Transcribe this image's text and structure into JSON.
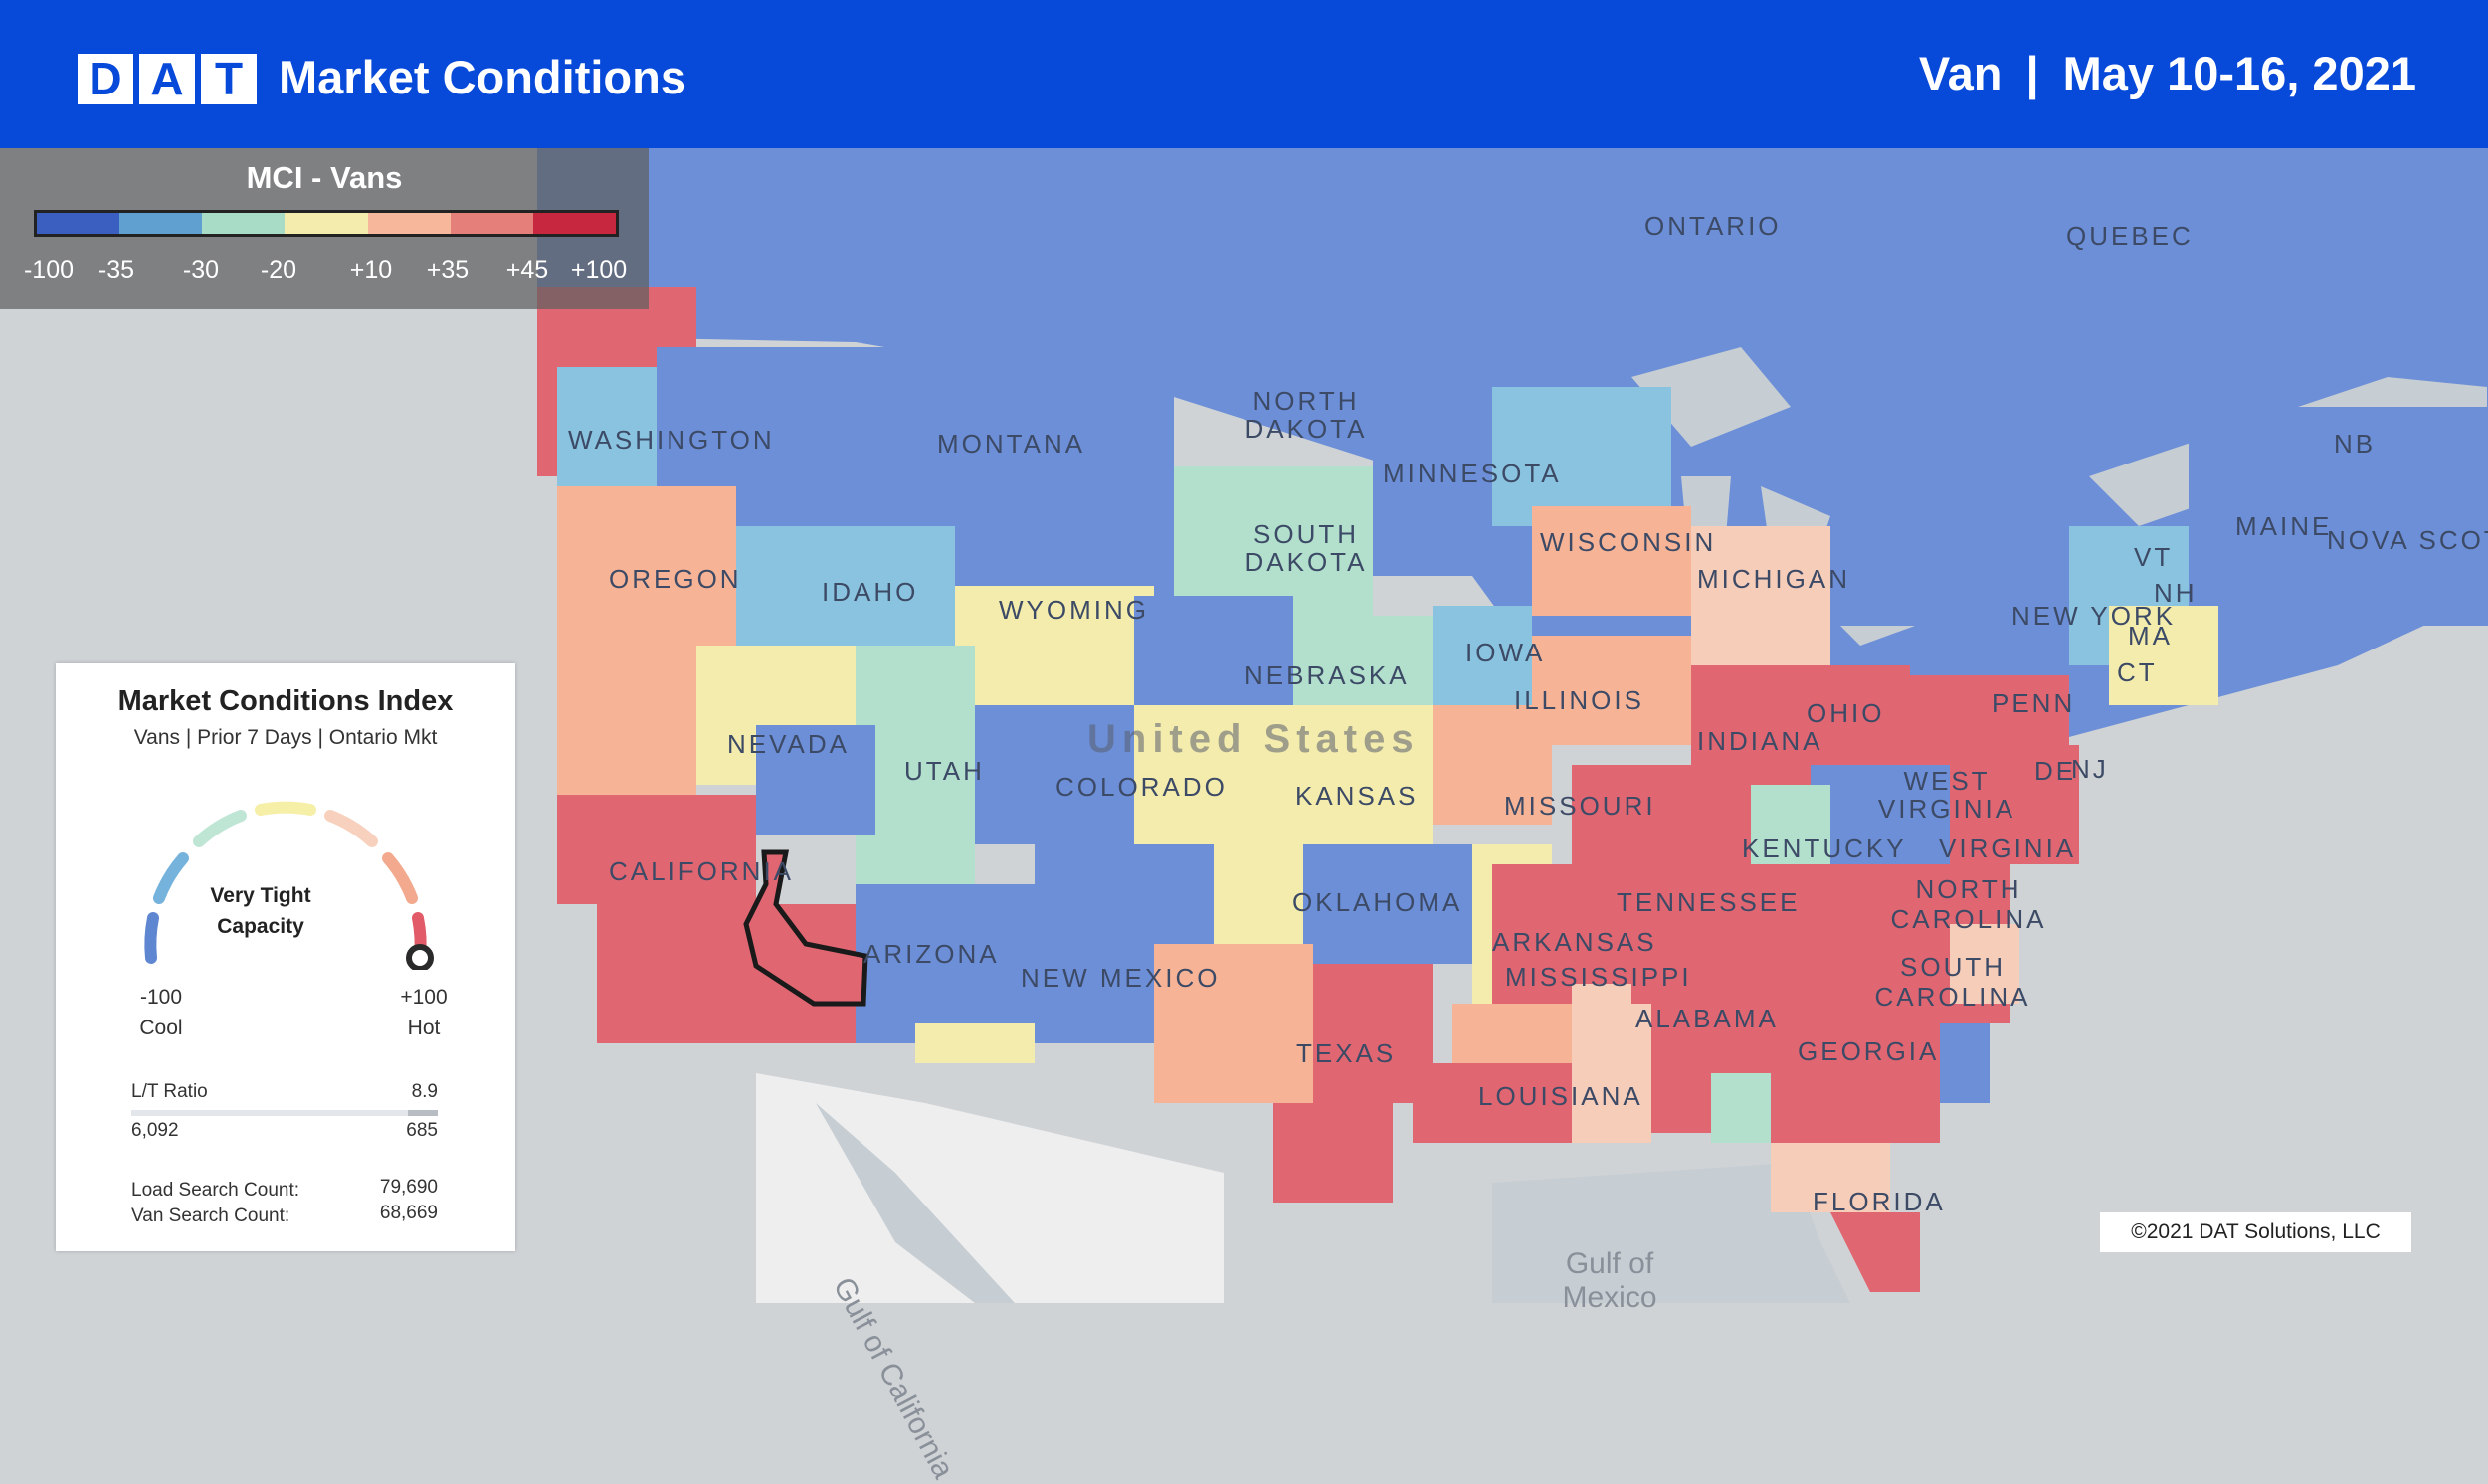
{
  "header": {
    "logo_letters": [
      "D",
      "A",
      "T"
    ],
    "title": "Market Conditions",
    "equipment": "Van",
    "separator": "|",
    "date_range": "May 10-16, 2021"
  },
  "scale": {
    "title": "MCI - Vans",
    "colors": [
      "#3b5fc0",
      "#5fa0d0",
      "#a9dcc7",
      "#f3ecad",
      "#f6b79a",
      "#e47f79",
      "#c8283f"
    ],
    "ticks": [
      "-100",
      "-35",
      "-30",
      "-20",
      "+10",
      "+35",
      "+45",
      "+100"
    ]
  },
  "map": {
    "country_label": "United States",
    "water_labels": [
      "Gulf of California",
      "Gulf of Mexico"
    ],
    "region_labels": {
      "ontario": "ONTARIO",
      "quebec": "QUEBEC",
      "washington": "WASHINGTON",
      "montana": "MONTANA",
      "north_dakota": "NORTH DAKOTA",
      "minnesota": "MINNESOTA",
      "south_dakota": "SOUTH DAKOTA",
      "oregon": "OREGON",
      "idaho": "IDAHO",
      "wyoming": "WYOMING",
      "wisconsin": "WISCONSIN",
      "michigan": "MICHIGAN",
      "iowa": "IOWA",
      "nebraska": "NEBRASKA",
      "nevada": "NEVADA",
      "utah": "UTAH",
      "colorado": "COLORADO",
      "kansas": "KANSAS",
      "illinois": "ILLINOIS",
      "indiana": "INDIANA",
      "ohio": "OHIO",
      "penn": "PENN",
      "new_york": "NEW YORK",
      "maine": "MAINE",
      "nb": "NB",
      "nova_scotia": "NOVA SCOT",
      "vt": "VT",
      "nh": "NH",
      "ma": "MA",
      "ct": "CT",
      "nj": "NJ",
      "de": "DE",
      "missouri": "MISSOURI",
      "kentucky": "KENTUCKY",
      "west_virginia": "WEST VIRGINIA",
      "virginia": "VIRGINIA",
      "california": "CALIFORNIA",
      "arizona": "ARIZONA",
      "new_mexico": "NEW MEXICO",
      "oklahoma": "OKLAHOMA",
      "arkansas": "ARKANSAS",
      "tennessee": "TENNESSEE",
      "north_carolina": "NORTH CAROLINA",
      "south_carolina": "SOUTH CAROLINA",
      "mississippi": "MISSISSIPPI",
      "alabama": "ALABAMA",
      "georgia": "GEORGIA",
      "texas": "TEXAS",
      "louisiana": "LOUISIANA",
      "florida": "FLORIDA"
    }
  },
  "card": {
    "title": "Market Conditions Index",
    "subtitle": "Vans | Prior 7 Days | Ontario Mkt",
    "gauge_status": "Very Tight Capacity",
    "gauge_value": 100,
    "gauge_min": "-100",
    "gauge_min_label": "Cool",
    "gauge_max": "+100",
    "gauge_max_label": "Hot",
    "lt_ratio_label": "L/T Ratio",
    "lt_ratio_value": "8.9",
    "loads": "6,092",
    "trucks": "685",
    "load_search_label": "Load Search Count:",
    "load_search_value": "79,690",
    "van_search_label": "Van Search Count:",
    "van_search_value": "68,669"
  },
  "copyright": "©2021 DAT Solutions, LLC"
}
